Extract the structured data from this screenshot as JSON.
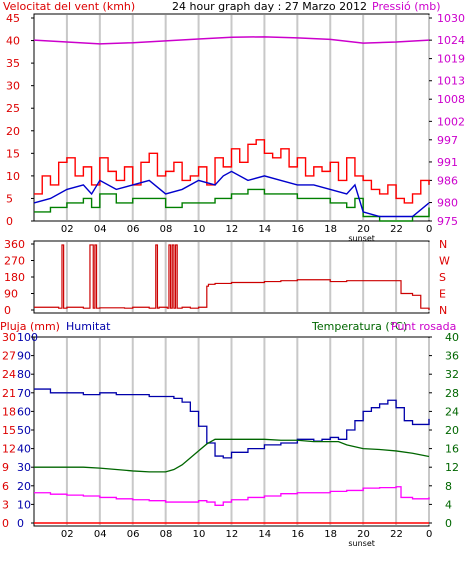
{
  "header": {
    "wind_label": "Velocitat del vent (kmh)",
    "title": "24 hour graph day : 27 Marzo 2012",
    "pressure_label": "Pressió (mb)",
    "rain_label": "Pluja (mm)",
    "humidity_label": "Humitat",
    "temp_label": "Temperatura (°C)",
    "dew_label": "Punt rosada",
    "sunset_label": "sunset"
  },
  "colors": {
    "wind_gust": "#ff0000",
    "wind_avg": "#008000",
    "wind_speed": "#0000cc",
    "pressure": "#cc00cc",
    "direction": "#cc0000",
    "humidity": "#0000aa",
    "temperature": "#006600",
    "dewpoint": "#ff00ff",
    "rain": "#ff0000",
    "grid": "#c8c8c8"
  },
  "chart_data": [
    {
      "type": "line",
      "name": "wind-pressure",
      "x_ticks": [
        "02",
        "04",
        "06",
        "08",
        "10",
        "12",
        "14",
        "16",
        "18",
        "20",
        "22",
        "0"
      ],
      "y_left_ticks": [
        0,
        5,
        10,
        15,
        20,
        25,
        30,
        35,
        40,
        45
      ],
      "y_left_ylim": [
        0,
        45
      ],
      "y_right_ticks": [
        975,
        980,
        986,
        991,
        997,
        1002,
        1008,
        1013,
        1019,
        1024,
        1030
      ],
      "y_right_ylim": [
        975,
        1030
      ],
      "grid": true,
      "series": [
        {
          "name": "gust",
          "axis": "left",
          "x": [
            0,
            0.5,
            1,
            1.5,
            2,
            2.5,
            3,
            3.5,
            4,
            4.5,
            5,
            5.5,
            6,
            6.5,
            7,
            7.5,
            8,
            8.5,
            9,
            9.5,
            10,
            10.5,
            11,
            11.5,
            12,
            12.5,
            13,
            13.5,
            14,
            14.5,
            15,
            15.5,
            16,
            16.5,
            17,
            17.5,
            18,
            18.5,
            19,
            19.5,
            20,
            20.5,
            21,
            21.5,
            22,
            22.5,
            23,
            23.5,
            24
          ],
          "values": [
            6,
            10,
            8,
            13,
            14,
            10,
            12,
            8,
            14,
            11,
            9,
            12,
            8,
            13,
            15,
            10,
            11,
            13,
            9,
            10,
            12,
            8,
            14,
            12,
            16,
            13,
            17,
            18,
            15,
            14,
            16,
            12,
            14,
            10,
            12,
            11,
            13,
            9,
            14,
            10,
            9,
            7,
            6,
            8,
            5,
            4,
            6,
            9,
            8
          ]
        },
        {
          "name": "speed",
          "axis": "left",
          "x": [
            0,
            1,
            2,
            3,
            3.5,
            4,
            5,
            6,
            7,
            8,
            9,
            10,
            11,
            11.5,
            12,
            13,
            14,
            15,
            16,
            17,
            18,
            19,
            19.5,
            20,
            21,
            22,
            23,
            24
          ],
          "values": [
            4,
            5,
            7,
            8,
            6,
            9,
            7,
            8,
            9,
            6,
            7,
            9,
            8,
            10,
            11,
            9,
            10,
            9,
            8,
            8,
            7,
            6,
            8,
            2,
            1,
            1,
            1,
            4
          ]
        },
        {
          "name": "average",
          "axis": "left",
          "x": [
            0,
            1,
            2,
            3,
            3.5,
            4,
            5,
            6,
            7,
            8,
            9,
            10,
            11,
            12,
            13,
            14,
            15,
            16,
            17,
            18,
            19,
            19.5,
            20,
            21,
            22,
            23,
            24
          ],
          "values": [
            2,
            3,
            4,
            5,
            3,
            6,
            4,
            5,
            5,
            3,
            4,
            4,
            5,
            6,
            7,
            6,
            6,
            5,
            5,
            4,
            3,
            5,
            1,
            0,
            0,
            1,
            3
          ]
        },
        {
          "name": "pressure",
          "axis": "right",
          "x": [
            0,
            2,
            4,
            6,
            8,
            10,
            12,
            14,
            16,
            18,
            20,
            22,
            24
          ],
          "values": [
            1024,
            1023.5,
            1023,
            1023.3,
            1023.8,
            1024.3,
            1024.8,
            1024.9,
            1024.6,
            1024.2,
            1023.2,
            1023.5,
            1024
          ]
        }
      ]
    },
    {
      "type": "line",
      "name": "wind-direction",
      "y_ticks": [
        0,
        90,
        180,
        270,
        360
      ],
      "y_right_labels": [
        "N",
        "W",
        "S",
        "E",
        "N"
      ],
      "ylim": [
        0,
        360
      ],
      "grid": true,
      "series": [
        {
          "name": "direction",
          "x": [
            0,
            1.5,
            1.6,
            1.7,
            1.8,
            2,
            3,
            3.3,
            3.4,
            3.5,
            3.6,
            3.7,
            3.8,
            4,
            5.5,
            6,
            7,
            7.3,
            7.4,
            7.5,
            7.6,
            8,
            8.1,
            8.2,
            8.3,
            8.4,
            8.5,
            8.6,
            8.7,
            9,
            9.5,
            10,
            10.5,
            10.6,
            11,
            12,
            13,
            14,
            15,
            16,
            17,
            18,
            19,
            20,
            21,
            22,
            22.3,
            23,
            23.5,
            24
          ],
          "values": [
            15,
            10,
            10,
            355,
            10,
            15,
            10,
            10,
            355,
            355,
            10,
            355,
            10,
            12,
            10,
            15,
            10,
            10,
            355,
            10,
            15,
            15,
            10,
            355,
            10,
            355,
            10,
            355,
            10,
            15,
            10,
            15,
            130,
            140,
            145,
            150,
            150,
            155,
            160,
            165,
            165,
            155,
            160,
            160,
            160,
            160,
            90,
            80,
            10,
            0
          ]
        }
      ]
    },
    {
      "type": "line",
      "name": "rain-humidity-temp",
      "y_left_ticks_rain": [
        0,
        3,
        6,
        9,
        12,
        15,
        18,
        21,
        24,
        27,
        30
      ],
      "y_left_ticks_humidity": [
        0,
        10,
        20,
        30,
        40,
        50,
        60,
        70,
        80,
        90,
        100
      ],
      "ylim_left": [
        0,
        100
      ],
      "y_right_ticks": [
        0,
        4,
        8,
        12,
        16,
        20,
        24,
        28,
        32,
        36,
        40
      ],
      "ylim_right": [
        0,
        40
      ],
      "grid": true,
      "series": [
        {
          "name": "humidity",
          "axis": "left",
          "x": [
            0,
            1,
            2,
            3,
            4,
            5,
            6,
            7,
            8,
            8.5,
            9,
            9.5,
            10,
            10.5,
            11,
            11.5,
            12,
            13,
            14,
            15,
            16,
            17,
            17.5,
            18,
            18.5,
            19,
            19.5,
            20,
            20.5,
            21,
            21.5,
            22,
            22.5,
            23,
            24
          ],
          "values": [
            72,
            70,
            70,
            69,
            70,
            69,
            69,
            68,
            68,
            67,
            65,
            60,
            52,
            43,
            36,
            35,
            38,
            40,
            42,
            43,
            45,
            44,
            45,
            46,
            45,
            50,
            55,
            60,
            62,
            64,
            66,
            62,
            55,
            53,
            56
          ]
        },
        {
          "name": "temperature",
          "axis": "right",
          "x": [
            0,
            1,
            2,
            3,
            4,
            5,
            6,
            7,
            8,
            8.5,
            9,
            9.5,
            10,
            10.5,
            11,
            12,
            13,
            14,
            15,
            16,
            17,
            18,
            18.5,
            19,
            20,
            21,
            22,
            23,
            24
          ],
          "values": [
            12,
            12,
            12,
            12,
            11.8,
            11.5,
            11.2,
            11,
            11,
            11.5,
            12.5,
            14,
            15.5,
            17,
            18,
            18,
            18,
            18,
            17.8,
            17.8,
            17.5,
            17.5,
            17.5,
            16.8,
            16,
            15.8,
            15.5,
            15,
            14.3
          ]
        },
        {
          "name": "dewpoint",
          "axis": "right",
          "x": [
            0,
            1,
            2,
            3,
            4,
            5,
            6,
            7,
            8,
            9,
            10,
            10.5,
            11,
            11.5,
            12,
            13,
            14,
            15,
            16,
            17,
            18,
            19,
            20,
            21,
            22,
            22.3,
            23,
            24
          ],
          "values": [
            6.5,
            6.2,
            6.0,
            5.8,
            5.5,
            5.2,
            5.0,
            4.8,
            4.5,
            4.5,
            4.8,
            4.5,
            3.8,
            4.5,
            5.0,
            5.5,
            5.8,
            6.3,
            6.5,
            6.5,
            6.8,
            7.0,
            7.5,
            7.6,
            7.8,
            5.5,
            5.2,
            5.5
          ]
        },
        {
          "name": "rain",
          "axis": "left",
          "x": [
            0,
            24
          ],
          "values": [
            0,
            0
          ]
        }
      ]
    }
  ]
}
